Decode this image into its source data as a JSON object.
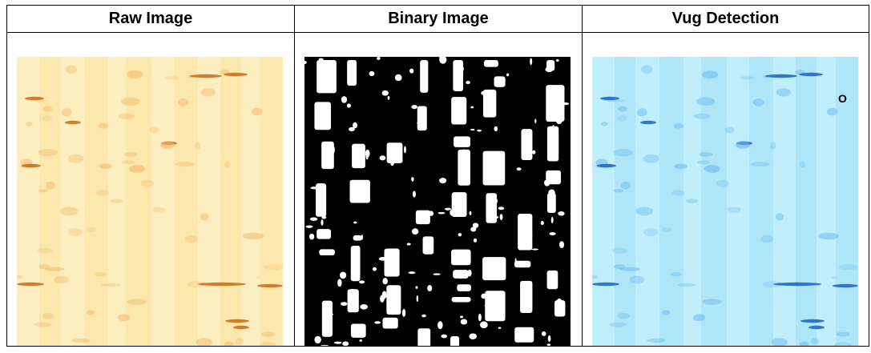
{
  "panels": [
    {
      "title": "Raw Image",
      "image": "raw-image",
      "palette": {
        "base": "#fdeebf",
        "stripe": "#fbe4a4",
        "dark": "#c86a14",
        "mid": "#f0b86a"
      }
    },
    {
      "title": "Binary Image",
      "image": "binary-image",
      "palette": {
        "base": "#000000",
        "fg": "#ffffff"
      }
    },
    {
      "title": "Vug Detection",
      "image": "vug-detection-image",
      "palette": {
        "base": "#bfeefc",
        "stripe": "#a6e2f7",
        "dark": "#1a5fc4",
        "mid": "#6cb8ee"
      },
      "marker": "O"
    }
  ]
}
